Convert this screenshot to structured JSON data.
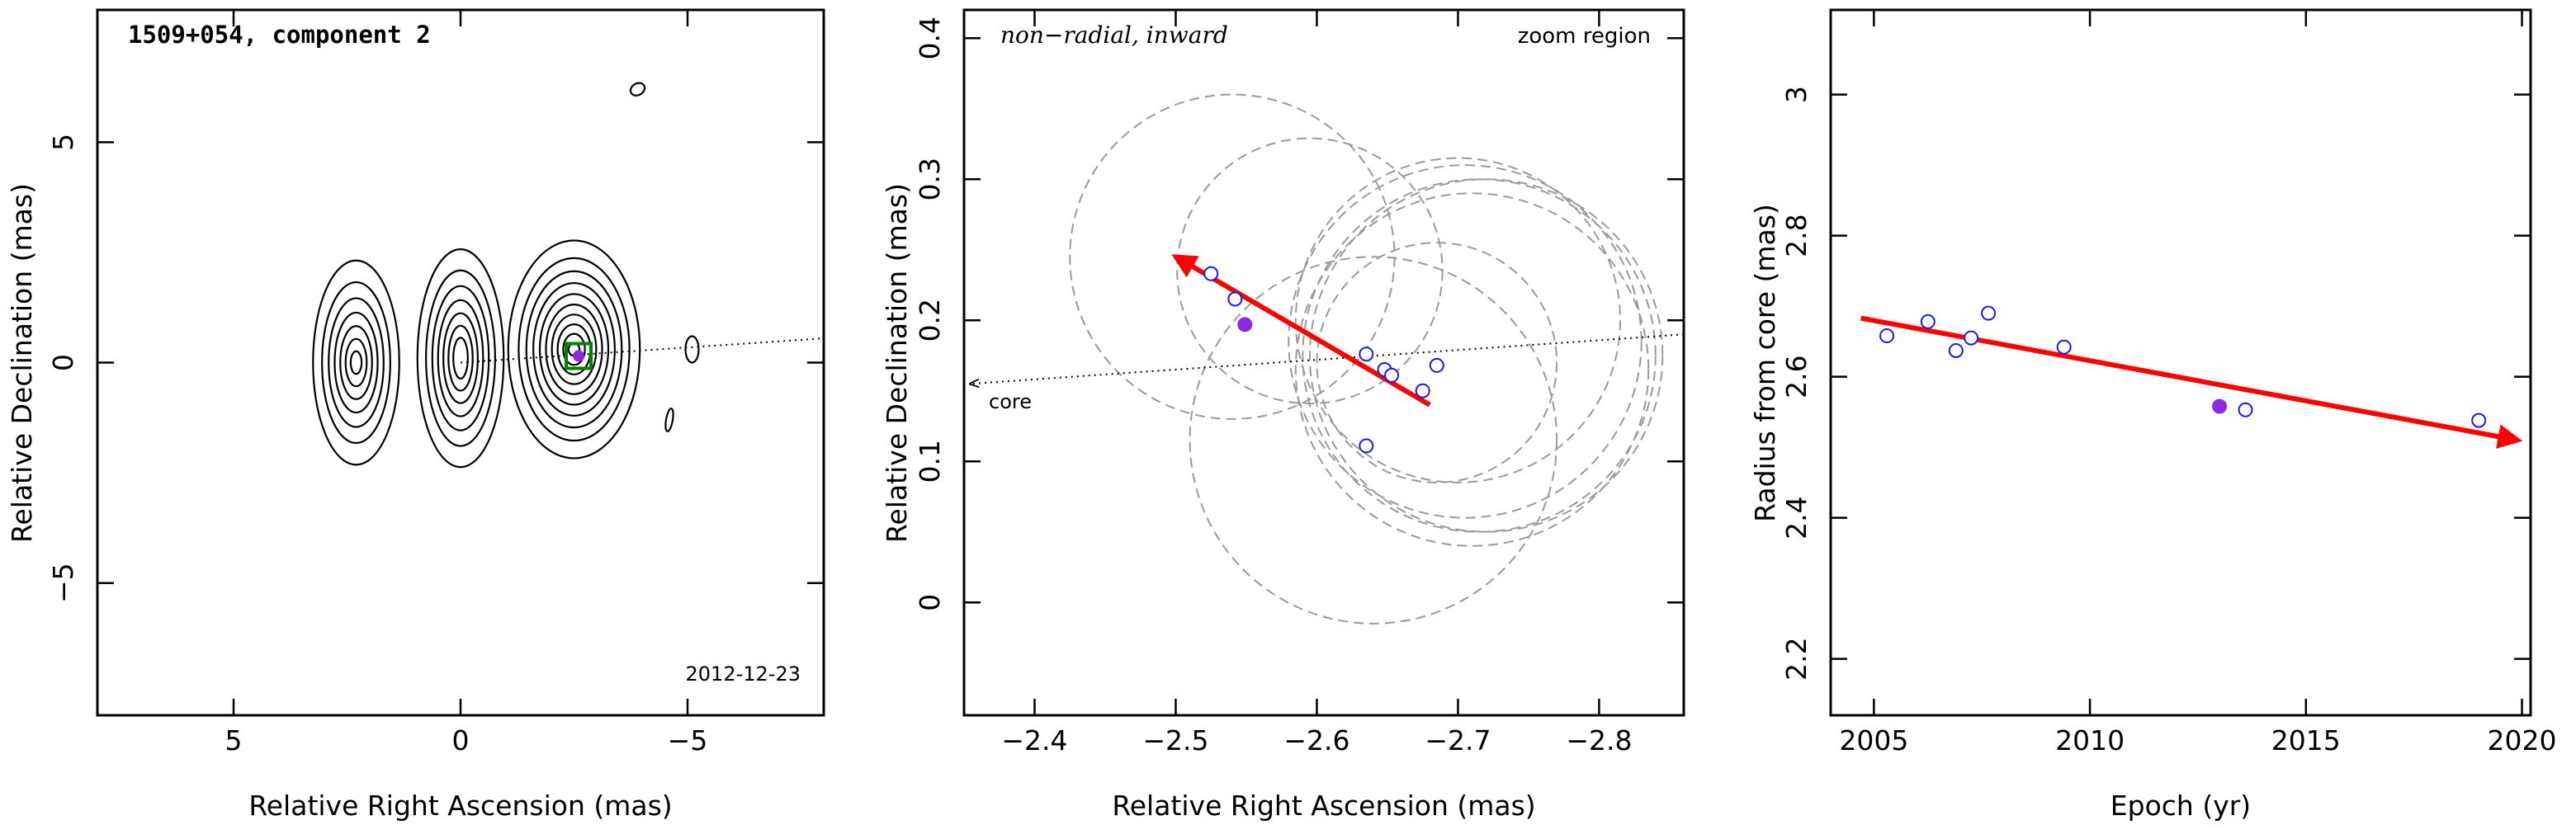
{
  "chart_data": [
    {
      "type": "contour",
      "title": "1509+054, component 2",
      "epoch_label": "2012-12-23",
      "xlabel": "Relative Right Ascension (mas)",
      "ylabel": "Relative Declination (mas)",
      "xlim": [
        8,
        -8
      ],
      "ylim": [
        -8,
        8
      ],
      "xticks": [
        5,
        0,
        -5
      ],
      "xtick_labels": [
        "5",
        "0",
        "−5"
      ],
      "yticks": [
        5,
        0,
        -5
      ],
      "ytick_labels": [
        "5",
        "0",
        "−5"
      ],
      "components": [
        {
          "name": "core-side blob",
          "center": [
            2.3,
            0.0
          ]
        },
        {
          "name": "middle blob",
          "center": [
            0.0,
            0.1
          ]
        },
        {
          "name": "component 2 blob",
          "center": [
            -2.5,
            0.3
          ]
        }
      ],
      "marked_position": [
        -2.6,
        0.15
      ],
      "reference_line": {
        "from": [
          0.0,
          0.0
        ],
        "to": [
          -8.0,
          0.55
        ]
      }
    },
    {
      "type": "scatter",
      "annotation": "non−radial, inward",
      "region_label": "zoom region",
      "core_label": "core",
      "xlabel": "Relative Right Ascension (mas)",
      "ylabel": "Relative Declination (mas)",
      "xlim": [
        -2.35,
        -2.86
      ],
      "ylim": [
        -0.08,
        0.42
      ],
      "xticks": [
        -2.4,
        -2.5,
        -2.6,
        -2.7,
        -2.8
      ],
      "xtick_labels": [
        "−2.4",
        "−2.5",
        "−2.6",
        "−2.7",
        "−2.8"
      ],
      "yticks": [
        0,
        0.1,
        0.2,
        0.3,
        0.4
      ],
      "ytick_labels": [
        "0",
        "0.1",
        "0.2",
        "0.3",
        "0.4"
      ],
      "points": [
        {
          "x": -2.525,
          "y": 0.233
        },
        {
          "x": -2.542,
          "y": 0.215
        },
        {
          "x": -2.635,
          "y": 0.176
        },
        {
          "x": -2.648,
          "y": 0.165
        },
        {
          "x": -2.653,
          "y": 0.161
        },
        {
          "x": -2.685,
          "y": 0.168
        },
        {
          "x": -2.675,
          "y": 0.15
        },
        {
          "x": -2.635,
          "y": 0.111
        }
      ],
      "highlight_point": {
        "x": -2.549,
        "y": 0.197
      },
      "error_circles": [
        {
          "cx": -2.595,
          "cy": 0.235,
          "r": 0.094
        },
        {
          "cx": -2.54,
          "cy": 0.245,
          "r": 0.115
        },
        {
          "cx": -2.7,
          "cy": 0.2,
          "r": 0.115
        },
        {
          "cx": -2.705,
          "cy": 0.185,
          "r": 0.125
        },
        {
          "cx": -2.71,
          "cy": 0.165,
          "r": 0.125
        },
        {
          "cx": -2.715,
          "cy": 0.175,
          "r": 0.125
        },
        {
          "cx": -2.72,
          "cy": 0.175,
          "r": 0.125
        },
        {
          "cx": -2.64,
          "cy": 0.115,
          "r": 0.13
        },
        {
          "cx": -2.685,
          "cy": 0.17,
          "r": 0.085
        }
      ],
      "motion_arrow": {
        "from": [
          -2.68,
          0.14
        ],
        "to": [
          -2.5,
          0.245
        ]
      },
      "reference_line": {
        "from": [
          -2.86,
          0.19
        ],
        "to": [
          -2.355,
          0.155
        ]
      }
    },
    {
      "type": "scatter",
      "xlabel": "Epoch (yr)",
      "ylabel": "Radius from core (mas)",
      "xlim": [
        2004,
        2020.2
      ],
      "ylim": [
        2.12,
        3.12
      ],
      "xticks": [
        2005,
        2010,
        2015,
        2020
      ],
      "xtick_labels": [
        "2005",
        "2010",
        "2015",
        "2020"
      ],
      "yticks": [
        2.2,
        2.4,
        2.6,
        2.8,
        3.0
      ],
      "ytick_labels": [
        "2.2",
        "2.4",
        "2.6",
        "2.8",
        "3"
      ],
      "points": [
        {
          "x": 2005.3,
          "y": 2.658
        },
        {
          "x": 2006.25,
          "y": 2.678
        },
        {
          "x": 2006.9,
          "y": 2.637
        },
        {
          "x": 2007.25,
          "y": 2.655
        },
        {
          "x": 2007.65,
          "y": 2.69
        },
        {
          "x": 2009.4,
          "y": 2.642
        },
        {
          "x": 2013.6,
          "y": 2.553
        },
        {
          "x": 2019.0,
          "y": 2.538
        }
      ],
      "highlight_point": {
        "x": 2013.0,
        "y": 2.558
      },
      "trend_arrow": {
        "from": [
          2004.7,
          2.683
        ],
        "to": [
          2019.9,
          2.51
        ]
      }
    }
  ],
  "colors": {
    "axes": "#000000",
    "open_marker": "#1a1af0",
    "filled_marker": "#8a2be2",
    "arrow": "#ff0000",
    "error_circle": "#9a9a9a",
    "contour": "#000000",
    "box": "#008000"
  }
}
